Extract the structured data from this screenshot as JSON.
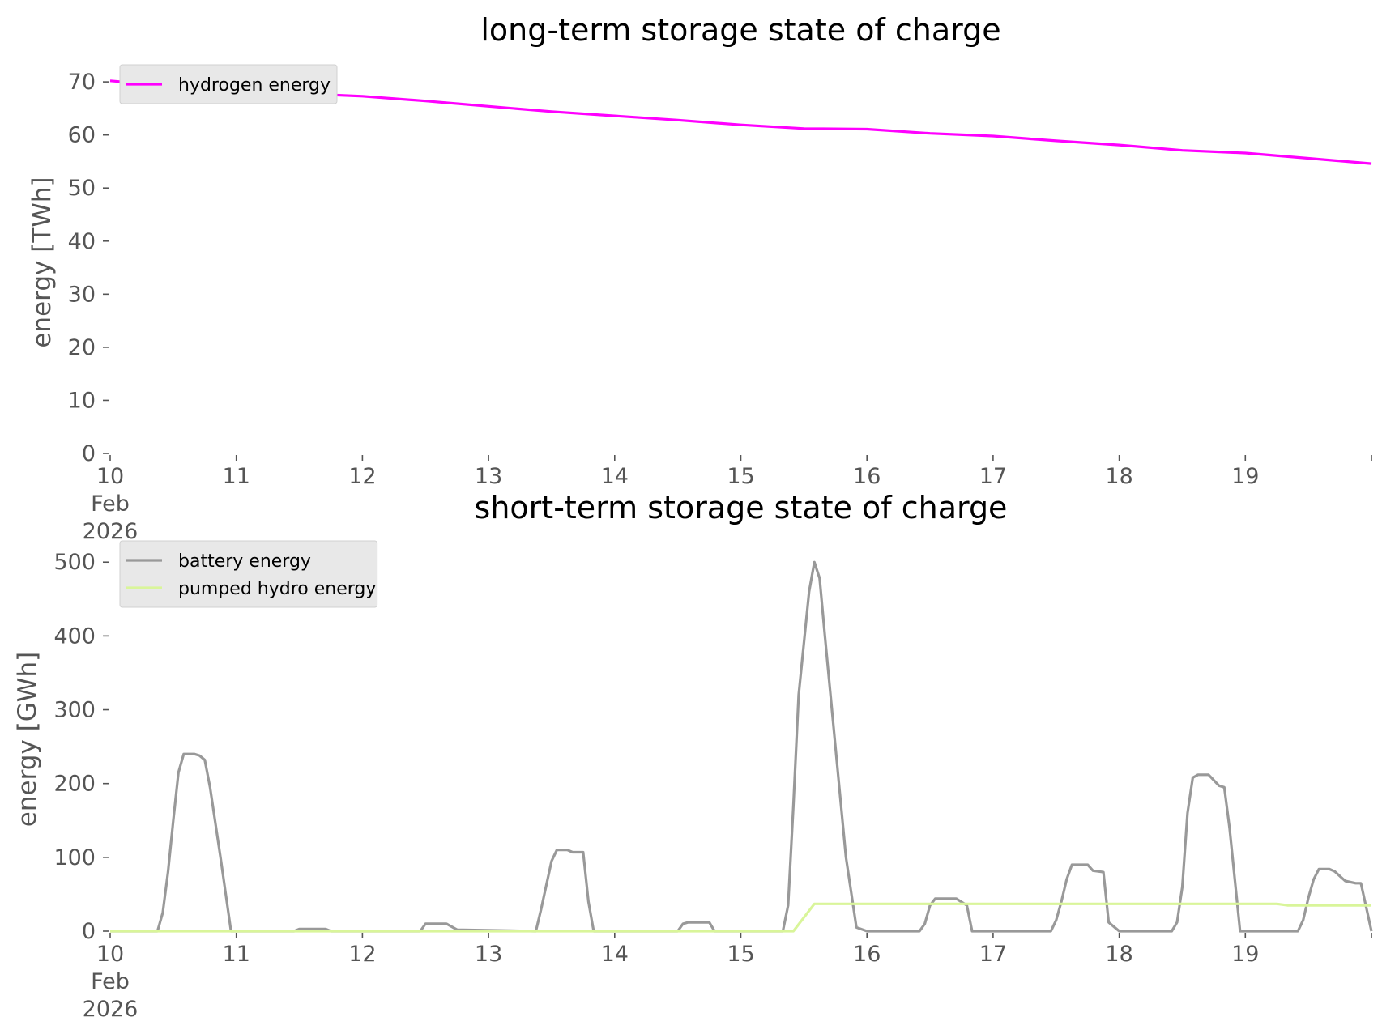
{
  "chart_data": [
    {
      "type": "line",
      "title": "long-term storage state of charge",
      "xlabel": "",
      "ylabel": "energy [TWh]",
      "ylim": [
        0,
        72
      ],
      "yticks": [
        0,
        10,
        20,
        30,
        40,
        50,
        60,
        70
      ],
      "xlim": [
        "2026-02-10",
        "2026-02-20"
      ],
      "xticks": [
        "10",
        "11",
        "12",
        "13",
        "14",
        "15",
        "16",
        "17",
        "18",
        "19"
      ],
      "x_first_tick_extra": [
        "Feb",
        "2026"
      ],
      "grid": false,
      "legend": "top-left",
      "series": [
        {
          "name": "hydrogen energy",
          "color": "#ff00ff",
          "points": [
            [
              "2026-02-10 00:00",
              70.2
            ],
            [
              "2026-02-10 12:00",
              69.2
            ],
            [
              "2026-02-11 00:00",
              68.4
            ],
            [
              "2026-02-11 12:00",
              67.8
            ],
            [
              "2026-02-12 00:00",
              67.3
            ],
            [
              "2026-02-12 12:00",
              66.4
            ],
            [
              "2026-02-13 00:00",
              65.4
            ],
            [
              "2026-02-13 12:00",
              64.4
            ],
            [
              "2026-02-14 00:00",
              63.6
            ],
            [
              "2026-02-14 12:00",
              62.8
            ],
            [
              "2026-02-15 00:00",
              61.9
            ],
            [
              "2026-02-15 12:00",
              61.2
            ],
            [
              "2026-02-16 00:00",
              61.1
            ],
            [
              "2026-02-16 12:00",
              60.3
            ],
            [
              "2026-02-17 00:00",
              59.8
            ],
            [
              "2026-02-17 12:00",
              58.9
            ],
            [
              "2026-02-18 00:00",
              58.1
            ],
            [
              "2026-02-18 12:00",
              57.1
            ],
            [
              "2026-02-19 00:00",
              56.6
            ],
            [
              "2026-02-19 12:00",
              55.6
            ],
            [
              "2026-02-20 00:00",
              54.6
            ]
          ]
        }
      ]
    },
    {
      "type": "line",
      "title": "short-term storage state of charge",
      "xlabel": "",
      "ylabel": "energy [GWh]",
      "ylim": [
        0,
        520
      ],
      "yticks": [
        0,
        100,
        200,
        300,
        400,
        500
      ],
      "xlim": [
        "2026-02-10",
        "2026-02-20"
      ],
      "xticks": [
        "10",
        "11",
        "12",
        "13",
        "14",
        "15",
        "16",
        "17",
        "18",
        "19"
      ],
      "x_first_tick_extra": [
        "Feb",
        "2026"
      ],
      "grid": false,
      "legend": "top-left",
      "series": [
        {
          "name": "battery energy",
          "color": "#999999",
          "points": [
            [
              "2026-02-10 00:00",
              0
            ],
            [
              "2026-02-10 09:00",
              0
            ],
            [
              "2026-02-10 10:00",
              25
            ],
            [
              "2026-02-10 11:00",
              80
            ],
            [
              "2026-02-10 12:00",
              150
            ],
            [
              "2026-02-10 13:00",
              215
            ],
            [
              "2026-02-10 14:00",
              240
            ],
            [
              "2026-02-10 16:00",
              240
            ],
            [
              "2026-02-10 17:00",
              238
            ],
            [
              "2026-02-10 18:00",
              232
            ],
            [
              "2026-02-10 19:00",
              195
            ],
            [
              "2026-02-10 21:00",
              100
            ],
            [
              "2026-02-10 23:00",
              0
            ],
            [
              "2026-02-11 11:00",
              0
            ],
            [
              "2026-02-11 12:00",
              3
            ],
            [
              "2026-02-11 17:00",
              3
            ],
            [
              "2026-02-11 18:00",
              0
            ],
            [
              "2026-02-12 11:00",
              0
            ],
            [
              "2026-02-12 12:00",
              10
            ],
            [
              "2026-02-12 16:00",
              10
            ],
            [
              "2026-02-12 18:00",
              2
            ],
            [
              "2026-02-13 09:00",
              0
            ],
            [
              "2026-02-13 10:00",
              30
            ],
            [
              "2026-02-13 12:00",
              95
            ],
            [
              "2026-02-13 13:00",
              110
            ],
            [
              "2026-02-13 15:00",
              110
            ],
            [
              "2026-02-13 16:00",
              107
            ],
            [
              "2026-02-13 18:00",
              107
            ],
            [
              "2026-02-13 19:00",
              40
            ],
            [
              "2026-02-13 20:00",
              0
            ],
            [
              "2026-02-14 12:00",
              0
            ],
            [
              "2026-02-14 13:00",
              10
            ],
            [
              "2026-02-14 14:00",
              12
            ],
            [
              "2026-02-14 18:00",
              12
            ],
            [
              "2026-02-14 19:00",
              0
            ],
            [
              "2026-02-15 08:00",
              0
            ],
            [
              "2026-02-15 09:00",
              35
            ],
            [
              "2026-02-15 10:00",
              170
            ],
            [
              "2026-02-15 11:00",
              320
            ],
            [
              "2026-02-15 13:00",
              460
            ],
            [
              "2026-02-15 14:00",
              500
            ],
            [
              "2026-02-15 15:00",
              478
            ],
            [
              "2026-02-15 16:00",
              400
            ],
            [
              "2026-02-15 18:00",
              250
            ],
            [
              "2026-02-15 20:00",
              100
            ],
            [
              "2026-02-15 22:00",
              5
            ],
            [
              "2026-02-16 00:00",
              0
            ],
            [
              "2026-02-16 10:00",
              0
            ],
            [
              "2026-02-16 11:00",
              10
            ],
            [
              "2026-02-16 12:00",
              35
            ],
            [
              "2026-02-16 13:00",
              44
            ],
            [
              "2026-02-16 17:00",
              44
            ],
            [
              "2026-02-16 19:00",
              35
            ],
            [
              "2026-02-16 20:00",
              0
            ],
            [
              "2026-02-17 11:00",
              0
            ],
            [
              "2026-02-17 12:00",
              15
            ],
            [
              "2026-02-17 13:00",
              40
            ],
            [
              "2026-02-17 14:00",
              70
            ],
            [
              "2026-02-17 15:00",
              90
            ],
            [
              "2026-02-17 18:00",
              90
            ],
            [
              "2026-02-17 19:00",
              82
            ],
            [
              "2026-02-17 21:00",
              80
            ],
            [
              "2026-02-17 22:00",
              12
            ],
            [
              "2026-02-18 00:00",
              0
            ],
            [
              "2026-02-18 10:00",
              0
            ],
            [
              "2026-02-18 11:00",
              12
            ],
            [
              "2026-02-18 12:00",
              60
            ],
            [
              "2026-02-18 13:00",
              160
            ],
            [
              "2026-02-18 14:00",
              208
            ],
            [
              "2026-02-18 15:00",
              212
            ],
            [
              "2026-02-18 17:00",
              212
            ],
            [
              "2026-02-18 19:00",
              197
            ],
            [
              "2026-02-18 20:00",
              195
            ],
            [
              "2026-02-18 21:00",
              140
            ],
            [
              "2026-02-18 23:00",
              0
            ],
            [
              "2026-02-19 10:00",
              0
            ],
            [
              "2026-02-19 11:00",
              15
            ],
            [
              "2026-02-19 12:00",
              45
            ],
            [
              "2026-02-19 13:00",
              70
            ],
            [
              "2026-02-19 14:00",
              84
            ],
            [
              "2026-02-19 16:00",
              84
            ],
            [
              "2026-02-19 17:00",
              81
            ],
            [
              "2026-02-19 19:00",
              68
            ],
            [
              "2026-02-19 21:00",
              65
            ],
            [
              "2026-02-19 22:00",
              65
            ],
            [
              "2026-02-20 00:00",
              0
            ]
          ]
        },
        {
          "name": "pumped hydro energy",
          "color": "#d9f59a",
          "points": [
            [
              "2026-02-10 00:00",
              0
            ],
            [
              "2026-02-15 10:00",
              0
            ],
            [
              "2026-02-15 14:00",
              37
            ],
            [
              "2026-02-19 06:00",
              37
            ],
            [
              "2026-02-19 08:00",
              35
            ],
            [
              "2026-02-20 00:00",
              35
            ]
          ]
        }
      ]
    }
  ]
}
